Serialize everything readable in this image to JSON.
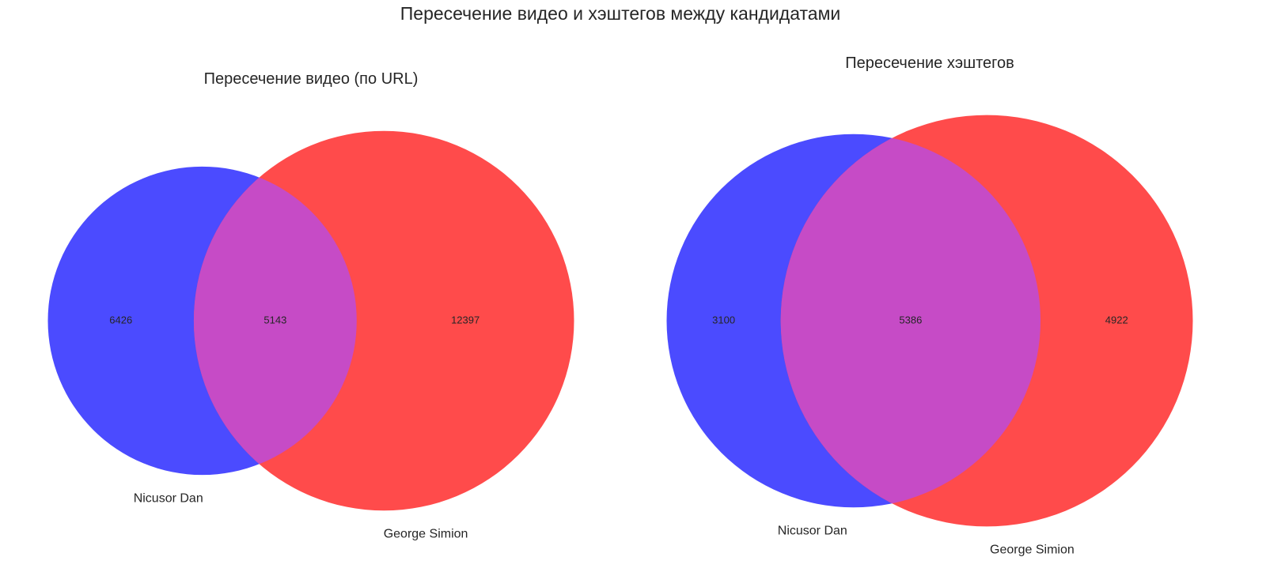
{
  "title": "Пересечение видео и хэштегов между кандидатами",
  "chart_data": [
    {
      "type": "venn",
      "title": "Пересечение видео (по URL)",
      "series": [
        {
          "name": "Nicusor Dan",
          "color": "#4b4bff"
        },
        {
          "name": "George Simion",
          "color": "#ff4b4b"
        }
      ],
      "overlap_color": "#c64bc6",
      "values": [
        6426,
        5143,
        12397
      ]
    },
    {
      "type": "venn",
      "title": "Пересечение хэштегов",
      "series": [
        {
          "name": "Nicusor Dan",
          "color": "#4b4bff"
        },
        {
          "name": "George Simion",
          "color": "#ff4b4b"
        }
      ],
      "overlap_color": "#c64bc6",
      "values": [
        3100,
        5386,
        4922
      ]
    }
  ]
}
